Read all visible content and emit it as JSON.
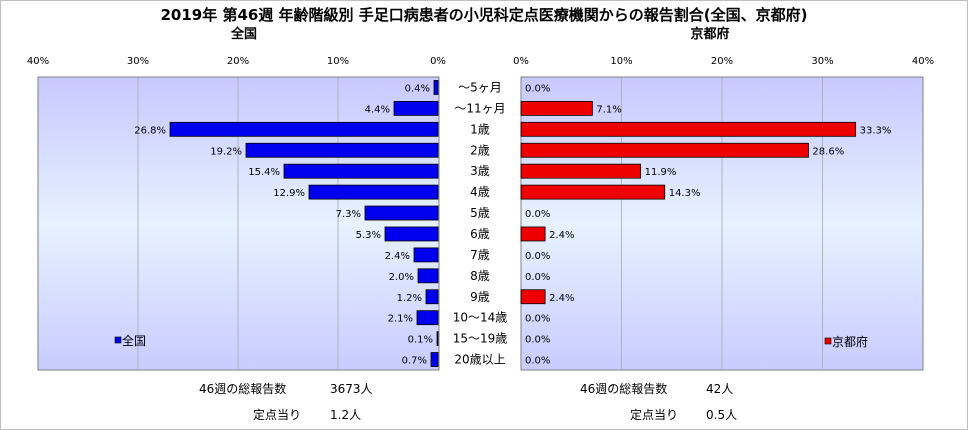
{
  "title": "2019年 第46週 年齢階級別 手足口病患者の小児科定点医療機関からの報告割合(全国、京都府)",
  "chart_data": [
    {
      "type": "bar",
      "orientation": "horizontal",
      "subtitle": "全国",
      "categories": [
        "～5ヶ月",
        "～11ヶ月",
        "1歳",
        "2歳",
        "3歳",
        "4歳",
        "5歳",
        "6歳",
        "7歳",
        "8歳",
        "9歳",
        "10～14歳",
        "15～19歳",
        "20歳以上"
      ],
      "values": [
        0.4,
        4.4,
        26.8,
        19.2,
        15.4,
        12.9,
        7.3,
        5.3,
        2.4,
        2.0,
        1.2,
        2.1,
        0.1,
        0.7
      ],
      "value_labels": [
        "0.4%",
        "4.4%",
        "26.8%",
        "19.2%",
        "15.4%",
        "12.9%",
        "7.3%",
        "5.3%",
        "2.4%",
        "2.0%",
        "1.2%",
        "2.1%",
        "0.1%",
        "0.7%"
      ],
      "xlim": [
        0,
        40
      ],
      "x_reversed": true,
      "xticks": [
        "40%",
        "30%",
        "20%",
        "10%",
        "0%"
      ],
      "legend": "全国",
      "legend_position": "bottom-left",
      "grid": true,
      "bar_color": "#0000ee",
      "footer": {
        "label1": "46週の総報告数",
        "value1": "3673人",
        "label2": "定点当り",
        "value2": "1.2人"
      }
    },
    {
      "type": "bar",
      "orientation": "horizontal",
      "subtitle": "京都府",
      "categories": [
        "～5ヶ月",
        "～11ヶ月",
        "1歳",
        "2歳",
        "3歳",
        "4歳",
        "5歳",
        "6歳",
        "7歳",
        "8歳",
        "9歳",
        "10～14歳",
        "15～19歳",
        "20歳以上"
      ],
      "values": [
        0.0,
        7.1,
        33.3,
        28.6,
        11.9,
        14.3,
        0.0,
        2.4,
        0.0,
        0.0,
        2.4,
        0.0,
        0.0,
        0.0
      ],
      "value_labels": [
        "0.0%",
        "7.1%",
        "33.3%",
        "28.6%",
        "11.9%",
        "14.3%",
        "0.0%",
        "2.4%",
        "0.0%",
        "0.0%",
        "2.4%",
        "0.0%",
        "0.0%",
        "0.0%"
      ],
      "xlim": [
        0,
        40
      ],
      "xticks": [
        "0%",
        "10%",
        "20%",
        "30%",
        "40%"
      ],
      "legend": "京都府",
      "legend_position": "bottom-right",
      "grid": true,
      "bar_color": "#ee0000",
      "footer": {
        "label1": "46週の総報告数",
        "value1": "42人",
        "label2": "定点当り",
        "value2": "0.5人"
      }
    }
  ]
}
